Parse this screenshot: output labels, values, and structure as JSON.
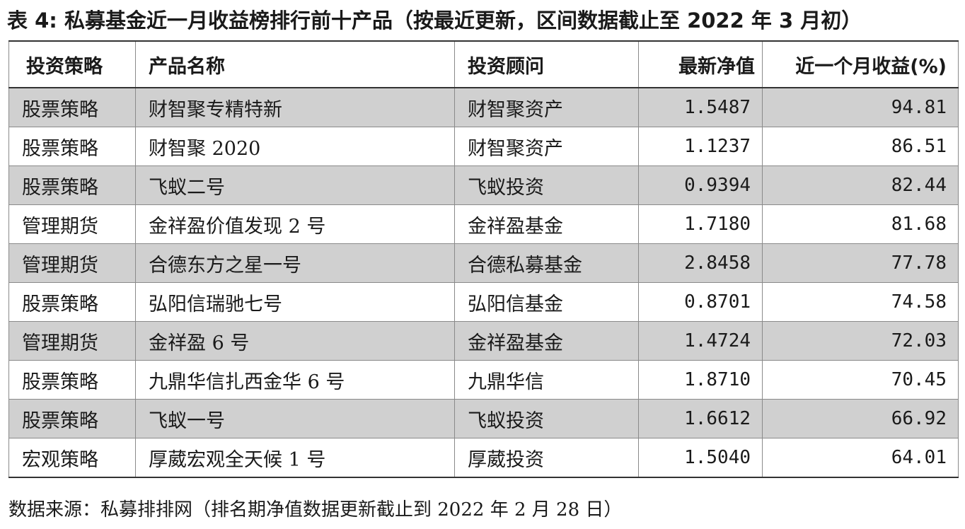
{
  "title": "表 4: 私募基金近一月收益榜排行前十产品（按最近更新，区间数据截止至 2022 年 3 月初）",
  "table": {
    "headers": [
      "投资策略",
      "产品名称",
      "投资顾问",
      "最新净值",
      "近一个月收益(%)"
    ],
    "rows": [
      [
        "股票策略",
        "财智聚专精特新",
        "财智聚资产",
        "1.5487",
        "94.81"
      ],
      [
        "股票策略",
        "财智聚 2020",
        "财智聚资产",
        "1.1237",
        "86.51"
      ],
      [
        "股票策略",
        "飞蚁二号",
        "飞蚁投资",
        "0.9394",
        "82.44"
      ],
      [
        "管理期货",
        "金祥盈价值发现 2 号",
        "金祥盈基金",
        "1.7180",
        "81.68"
      ],
      [
        "管理期货",
        "合德东方之星一号",
        "合德私募基金",
        "2.8458",
        "77.78"
      ],
      [
        "股票策略",
        "弘阳信瑞驰七号",
        "弘阳信基金",
        "0.8701",
        "74.58"
      ],
      [
        "管理期货",
        "金祥盈 6 号",
        "金祥盈基金",
        "1.4724",
        "72.03"
      ],
      [
        "股票策略",
        "九鼎华信扎西金华 6 号",
        "九鼎华信",
        "1.8710",
        "70.45"
      ],
      [
        "股票策略",
        "飞蚁一号",
        "飞蚁投资",
        "1.6612",
        "66.92"
      ],
      [
        "宏观策略",
        "厚葳宏观全天候 1 号",
        "厚葳投资",
        "1.5040",
        "64.01"
      ]
    ]
  },
  "source": "数据来源：私募排排网（排名期净值数据更新截止到 2022 年 2 月 28 日）",
  "colors": {
    "shaded_row": "#d0d0d0",
    "plain_row": "#ffffff"
  }
}
